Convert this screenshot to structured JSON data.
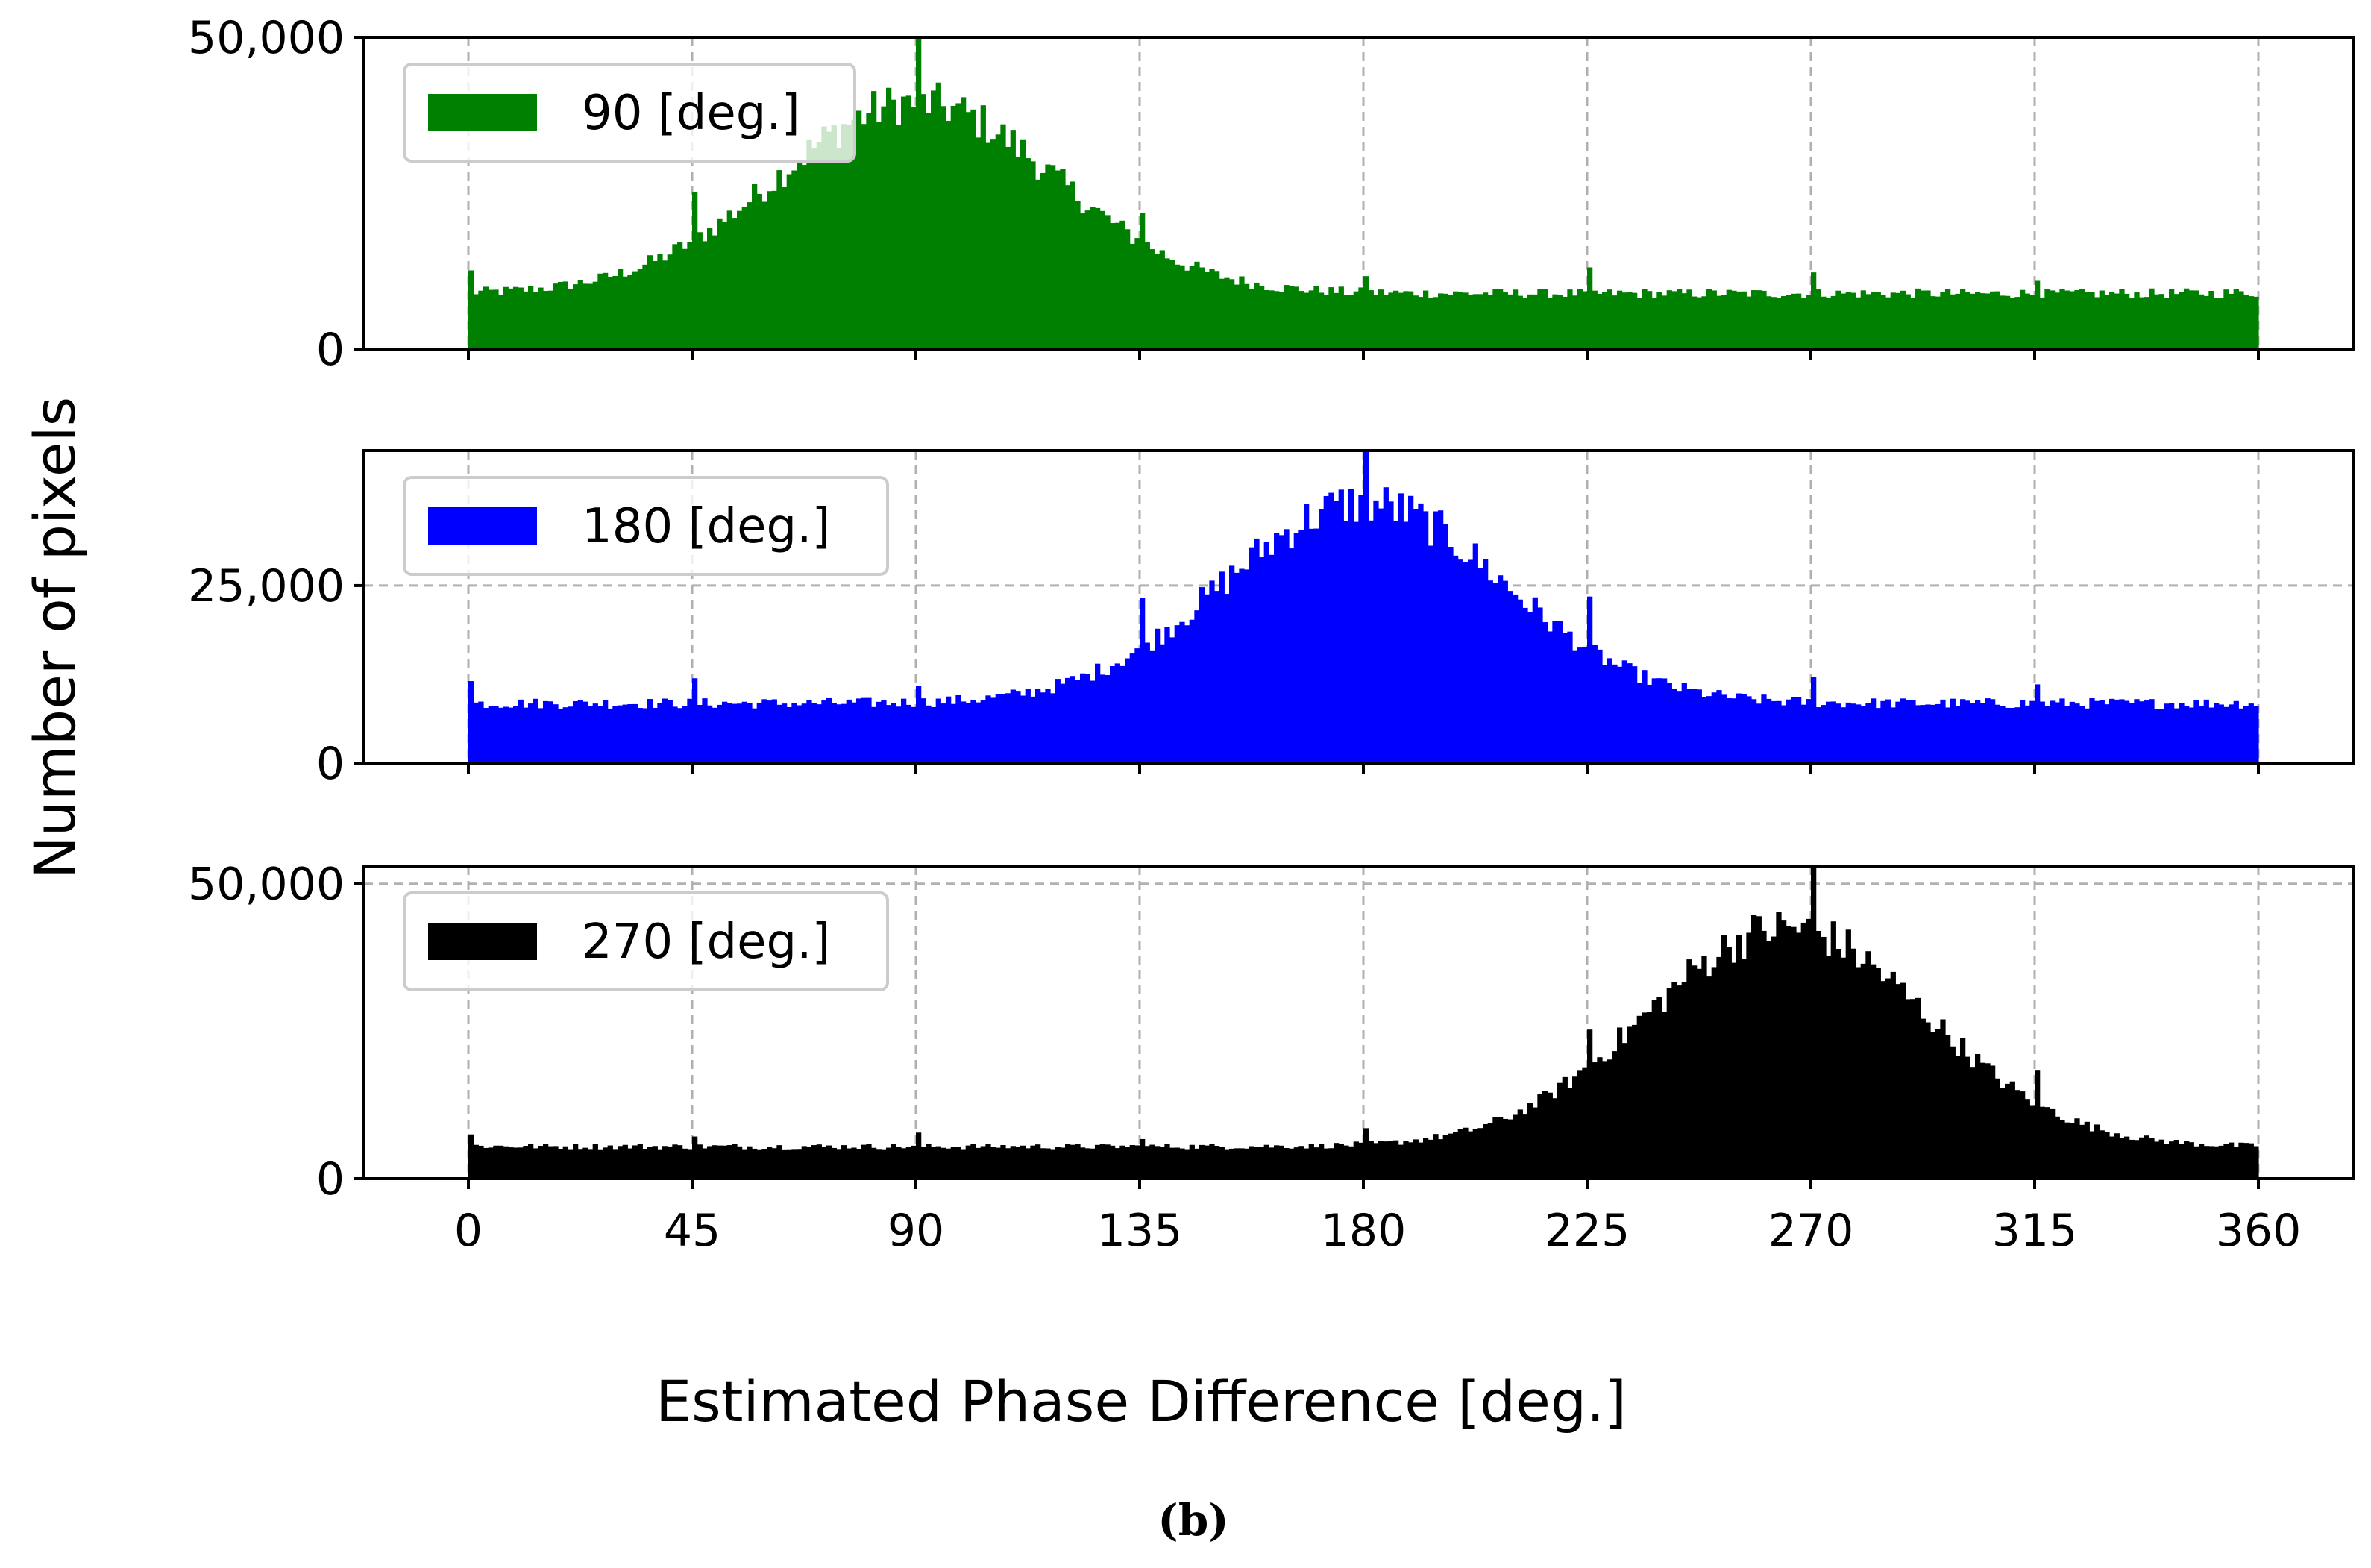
{
  "figure": {
    "ylabel": "Number of pixels",
    "xlabel": "Estimated Phase Difference [deg.]",
    "caption": "(b)"
  },
  "chart_data": [
    {
      "type": "bar",
      "subtype": "histogram",
      "series_name": "90 [deg.]",
      "color": "#008000",
      "peak_center": 90,
      "peak_value": 40000,
      "baseline_value": 9000,
      "x_range": [
        0,
        360
      ],
      "ylim": [
        0,
        50000
      ],
      "yticks": [
        0,
        50000
      ],
      "ytick_labels": [
        "0",
        "50,000"
      ],
      "xticks": [
        0,
        45,
        90,
        135,
        180,
        225,
        270,
        315,
        360
      ],
      "grid": true,
      "legend_position": "top-left"
    },
    {
      "type": "bar",
      "subtype": "histogram",
      "series_name": "180 [deg.]",
      "color": "#0000ff",
      "peak_center": 180,
      "peak_value": 37000,
      "baseline_value": 8500,
      "x_range": [
        0,
        360
      ],
      "ylim": [
        0,
        44000
      ],
      "yticks": [
        0,
        25000
      ],
      "ytick_labels": [
        "0",
        "25,000"
      ],
      "xticks": [
        0,
        45,
        90,
        135,
        180,
        225,
        270,
        315,
        360
      ],
      "grid": true,
      "legend_position": "top-left"
    },
    {
      "type": "bar",
      "subtype": "histogram",
      "series_name": "270 [deg.]",
      "color": "#000000",
      "peak_center": 265,
      "peak_value": 43000,
      "baseline_value": 5500,
      "x_range": [
        0,
        360
      ],
      "ylim": [
        0,
        53000
      ],
      "yticks": [
        0,
        50000
      ],
      "ytick_labels": [
        "0",
        "50,000"
      ],
      "xticks": [
        0,
        45,
        90,
        135,
        180,
        225,
        270,
        315,
        360
      ],
      "xtick_labels": [
        "0",
        "45",
        "90",
        "135",
        "180",
        "225",
        "270",
        "315",
        "360"
      ],
      "grid": true,
      "legend_position": "top-left"
    }
  ]
}
